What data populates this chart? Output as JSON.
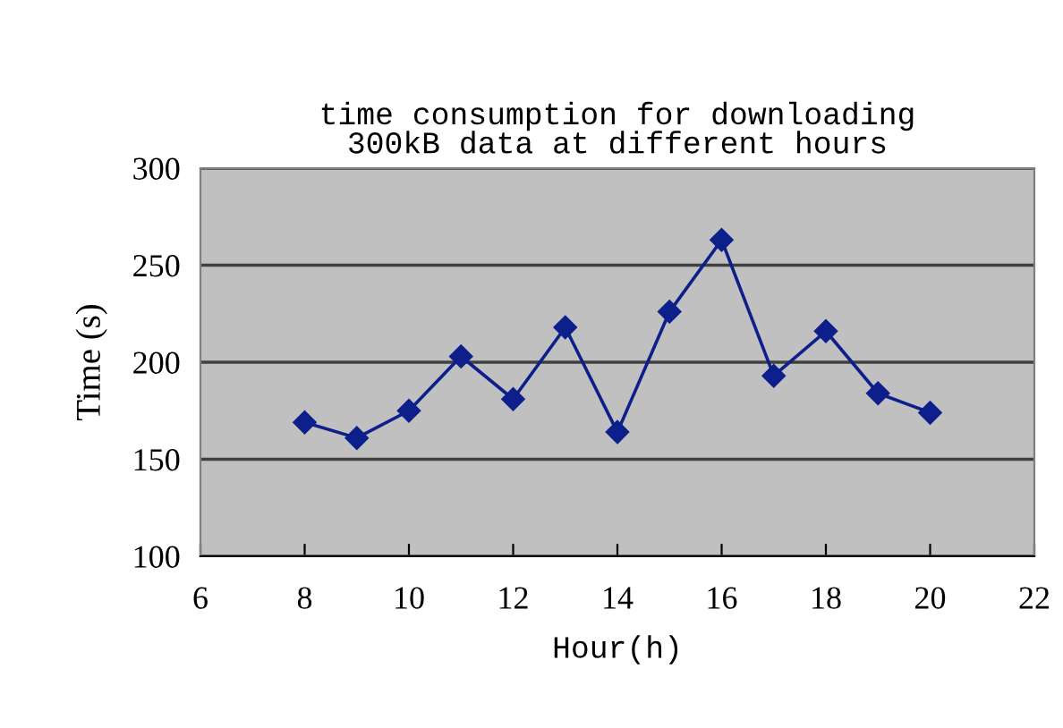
{
  "chart_data": {
    "type": "line",
    "title": "time consumption for downloading\n300kB data at different hours",
    "xlabel": "Hour(h)",
    "ylabel": "Time (s)",
    "x": [
      8,
      9,
      10,
      11,
      12,
      13,
      14,
      15,
      16,
      17,
      18,
      19,
      20
    ],
    "series": [
      {
        "color": "#0d1f8a",
        "values": [
          169,
          161,
          175,
          203,
          181,
          218,
          164,
          226,
          263,
          193,
          216,
          184,
          174
        ]
      }
    ],
    "xlim": [
      6,
      22
    ],
    "xticks": [
      6,
      8,
      10,
      12,
      14,
      16,
      18,
      20,
      22
    ],
    "ylim": [
      100,
      300
    ],
    "yticks": [
      100,
      150,
      200,
      250,
      300
    ],
    "grid": "y",
    "legend": false,
    "marker": "diamond",
    "line_style": "solid"
  }
}
